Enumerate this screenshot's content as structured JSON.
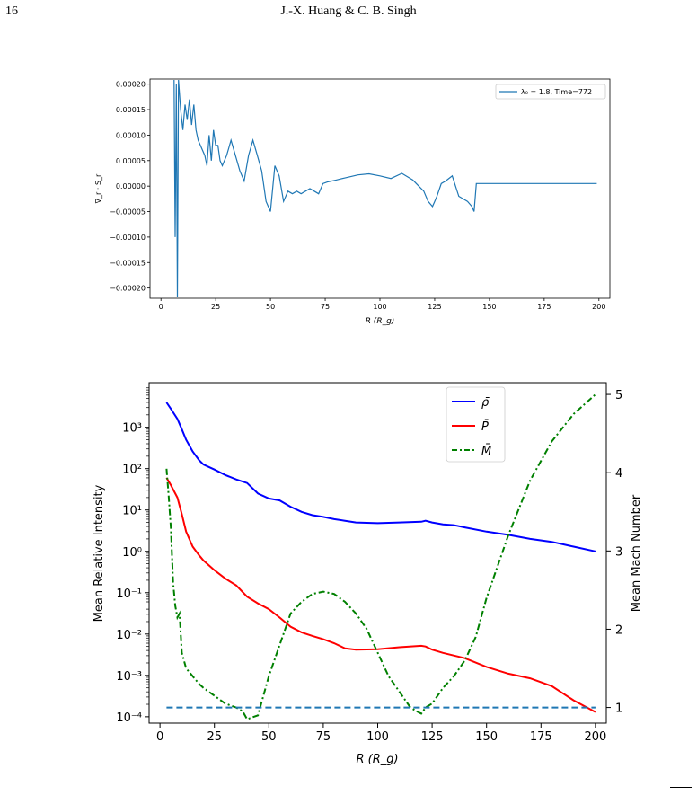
{
  "header": {
    "page_number": "16",
    "running_head": "J.-X. Huang & C. B. Singh"
  },
  "chart_data": [
    {
      "type": "line",
      "xlabel": "R (R_g)",
      "ylabel": "∇_r · S_r",
      "xlim": [
        -5,
        205
      ],
      "ylim": [
        -0.00022,
        0.00021
      ],
      "xticks": [
        0,
        25,
        50,
        75,
        100,
        125,
        150,
        175,
        200
      ],
      "xtick_labels": [
        "0",
        "25",
        "50",
        "75",
        "100",
        "125",
        "150",
        "175",
        "200"
      ],
      "yticks": [
        0.0002,
        0.00015,
        0.0001,
        5e-05,
        0,
        -5e-05,
        -0.0001,
        -0.00015,
        -0.0002
      ],
      "ytick_labels": [
        "0.00020",
        "0.00015",
        "0.00010",
        "0.00005",
        "0.00000",
        "−0.00005",
        "−0.00010",
        "−0.00015",
        "−0.00020"
      ],
      "legend": {
        "label": "λ₀ = 1.8, Time=772",
        "position": "top-right"
      },
      "color": "#1f77b4",
      "x": [
        6,
        6.5,
        7,
        7.5,
        8,
        9,
        10,
        11,
        12,
        13,
        14,
        15,
        16,
        17,
        18,
        19,
        20,
        21,
        22,
        23,
        24,
        25,
        26,
        27,
        28,
        30,
        32,
        34,
        36,
        38,
        40,
        42,
        44,
        46,
        48,
        50,
        52,
        54,
        56,
        58,
        60,
        62,
        64,
        66,
        68,
        70,
        72,
        74,
        76,
        78,
        80,
        82,
        84,
        86,
        90,
        95,
        100,
        105,
        110,
        115,
        120,
        122,
        124,
        125,
        126,
        128,
        130,
        133,
        136,
        140,
        142,
        143,
        144,
        145,
        146,
        147,
        150,
        160,
        170,
        180,
        190,
        199
      ],
      "y": [
        0.00021,
        -0.0001,
        0.0002,
        -0.00022,
        0.00021,
        0.00015,
        0.00011,
        0.00016,
        0.00013,
        0.00017,
        0.00012,
        0.00016,
        0.00011,
        9e-05,
        8e-05,
        7e-05,
        6e-05,
        4e-05,
        0.0001,
        5e-05,
        0.00011,
        8e-05,
        8e-05,
        5e-05,
        4e-05,
        6e-05,
        9e-05,
        6e-05,
        3e-05,
        1e-05,
        6e-05,
        9e-05,
        6e-05,
        3e-05,
        -3e-05,
        -5e-05,
        4e-05,
        2e-05,
        -3e-05,
        -1e-05,
        -1.5e-05,
        -1e-05,
        -1.5e-05,
        -1e-05,
        -5e-06,
        -1e-05,
        -1.5e-05,
        5e-06,
        8e-06,
        1e-05,
        1.2e-05,
        1.4e-05,
        1.6e-05,
        1.8e-05,
        2.2e-05,
        2.4e-05,
        2e-05,
        1.5e-05,
        2.5e-05,
        1.2e-05,
        -1e-05,
        -3e-05,
        -4e-05,
        -3e-05,
        -2e-05,
        5e-06,
        1e-05,
        2e-05,
        -2e-05,
        -3e-05,
        -4e-05,
        -5e-05,
        5e-06,
        5e-06,
        5e-06,
        5e-06,
        5e-06,
        5e-06,
        5e-06,
        5e-06,
        5e-06,
        5e-06
      ]
    },
    {
      "type": "line",
      "xlabel": "R (R_g)",
      "ylabel": "Mean Relative Intensity",
      "y2label": "Mean Mach Number",
      "yscale": "log",
      "xlim": [
        -5,
        205
      ],
      "ylim": [
        7e-05,
        12000
      ],
      "y2lim": [
        0.8,
        5.15
      ],
      "xticks": [
        0,
        25,
        50,
        75,
        100,
        125,
        150,
        175,
        200
      ],
      "xtick_labels": [
        "0",
        "25",
        "50",
        "75",
        "100",
        "125",
        "150",
        "175",
        "200"
      ],
      "yticks": [
        0.0001,
        0.001,
        0.01,
        0.1,
        1,
        10,
        100,
        1000
      ],
      "ytick_labels": [
        "10⁻⁴",
        "10⁻³",
        "10⁻²",
        "10⁻¹",
        "10⁰",
        "10¹",
        "10²",
        "10³"
      ],
      "y2ticks": [
        1,
        2,
        3,
        4,
        5
      ],
      "y2tick_labels": [
        "1",
        "2",
        "3",
        "4",
        "5"
      ],
      "legend_position": "top-center-right",
      "series": [
        {
          "name": "ρ̄",
          "color": "#0000ff",
          "style": "solid",
          "axis": "left",
          "x": [
            3,
            5,
            8,
            10,
            12,
            15,
            18,
            20,
            25,
            30,
            35,
            40,
            45,
            50,
            55,
            60,
            65,
            70,
            75,
            80,
            85,
            90,
            100,
            110,
            120,
            122,
            125,
            130,
            135,
            140,
            150,
            160,
            170,
            180,
            190,
            200
          ],
          "y": [
            4000,
            2800,
            1600,
            900,
            500,
            260,
            160,
            125,
            95,
            70,
            55,
            45,
            25,
            19,
            17,
            12,
            9,
            7.5,
            6.8,
            6,
            5.5,
            5,
            4.8,
            5,
            5.2,
            5.5,
            5,
            4.5,
            4.3,
            3.8,
            3,
            2.5,
            2,
            1.7,
            1.3,
            1
          ]
        },
        {
          "name": "P̄",
          "color": "#ff0000",
          "style": "solid",
          "axis": "left",
          "x": [
            3,
            5,
            8,
            10,
            12,
            15,
            18,
            20,
            25,
            30,
            35,
            40,
            45,
            50,
            55,
            60,
            65,
            70,
            75,
            80,
            85,
            90,
            100,
            110,
            120,
            122,
            125,
            130,
            140,
            150,
            160,
            170,
            180,
            190,
            200
          ],
          "y": [
            60,
            40,
            20,
            8,
            3,
            1.3,
            0.8,
            0.6,
            0.35,
            0.22,
            0.15,
            0.08,
            0.055,
            0.04,
            0.025,
            0.015,
            0.011,
            0.009,
            0.0075,
            0.006,
            0.0045,
            0.0042,
            0.0043,
            0.0048,
            0.0052,
            0.005,
            0.0042,
            0.0035,
            0.0026,
            0.0016,
            0.0011,
            0.00085,
            0.00055,
            0.00025,
            0.00013
          ]
        },
        {
          "name": "M̄",
          "color": "#008000",
          "style": "dash-dot",
          "axis": "right",
          "x": [
            3,
            4,
            5,
            6,
            7,
            8,
            9,
            10,
            12,
            15,
            18,
            20,
            25,
            30,
            35,
            38,
            40,
            45,
            50,
            55,
            60,
            65,
            70,
            75,
            80,
            85,
            90,
            95,
            100,
            105,
            110,
            115,
            118,
            120,
            122,
            125,
            130,
            135,
            140,
            145,
            150,
            160,
            170,
            180,
            190,
            200
          ],
          "y": [
            4.05,
            3.7,
            3.3,
            2.6,
            2.3,
            2.15,
            2.2,
            1.7,
            1.5,
            1.4,
            1.3,
            1.25,
            1.15,
            1.05,
            1,
            0.95,
            0.85,
            0.9,
            1.4,
            1.8,
            2.2,
            2.35,
            2.45,
            2.48,
            2.45,
            2.35,
            2.2,
            2,
            1.7,
            1.4,
            1.2,
            1,
            0.95,
            0.92,
            1,
            1.05,
            1.25,
            1.4,
            1.6,
            1.9,
            2.4,
            3.2,
            3.9,
            4.4,
            4.75,
            5
          ]
        },
        {
          "color": "#1f77b4",
          "style": "dashed",
          "axis": "right",
          "x": [
            3,
            200
          ],
          "y": [
            1,
            1
          ]
        }
      ]
    }
  ]
}
